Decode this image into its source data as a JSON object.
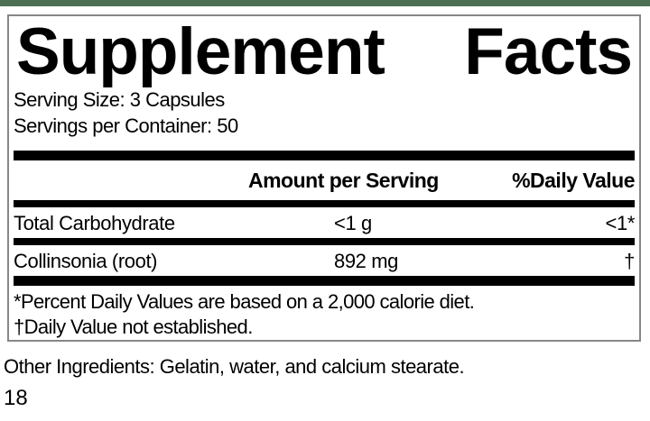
{
  "page": {
    "accent_bar_color": "#4c7051",
    "other_ingredients": "Other Ingredients: Gelatin, water, and calcium stearate.",
    "page_number": "18"
  },
  "label": {
    "title": "Supplement Facts",
    "title_left": "Supplement",
    "title_right": "Facts",
    "serving_size": "Serving Size: 3 Capsules",
    "servings_per_container": "Servings per Container: 50",
    "columns": {
      "amount": "Amount per Serving",
      "daily_value": "%Daily Value"
    },
    "rows": [
      {
        "name": "Total Carbohydrate",
        "amount": "<1 g",
        "daily_value": "<1*"
      },
      {
        "name": "Collinsonia (root)",
        "amount": "892 mg",
        "daily_value": "†"
      }
    ],
    "footnotes": [
      "*Percent Daily Values are based on a 2,000 calorie diet.",
      "†Daily Value not established."
    ]
  }
}
